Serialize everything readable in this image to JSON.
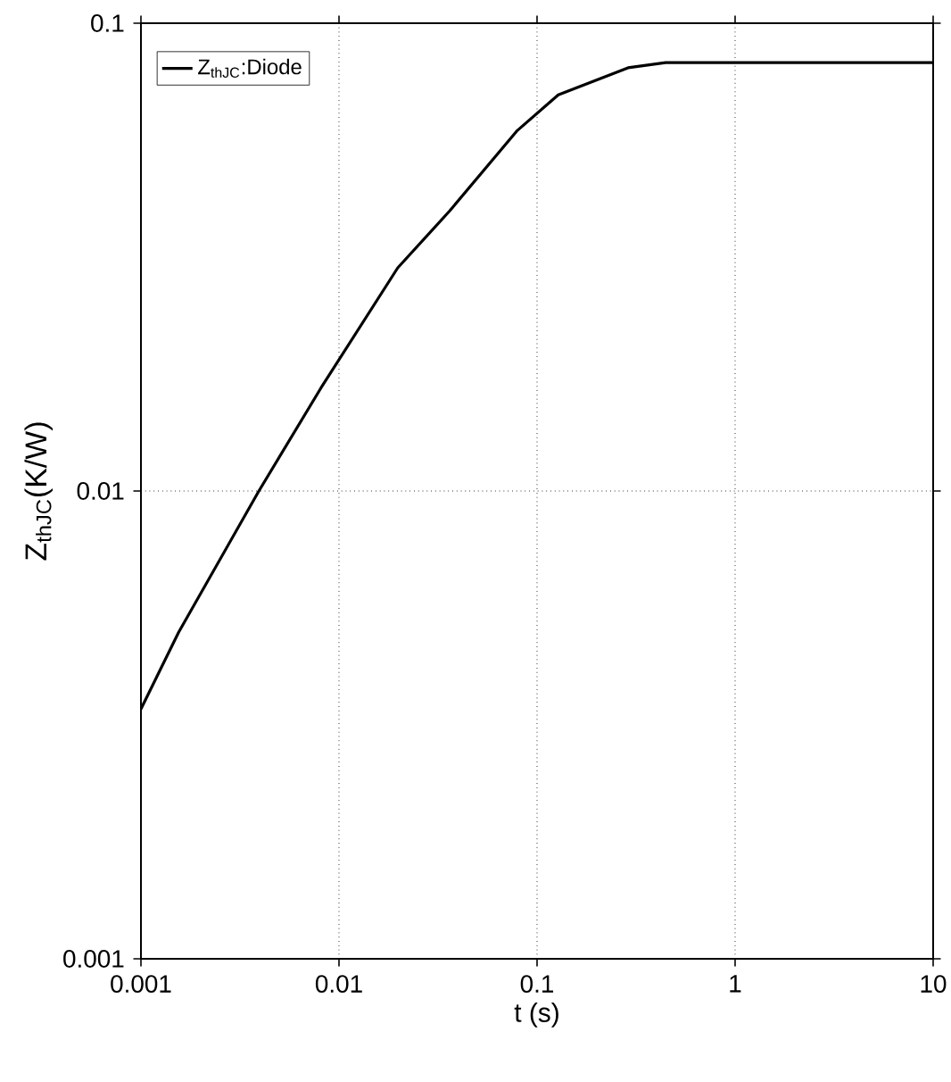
{
  "chart_data": {
    "type": "line",
    "xlabel": "t (s)",
    "ylabel": "Z$_{thJC}$(K/W)",
    "log": "xy",
    "grid": true,
    "legend": "top left",
    "marker": "none",
    "line_style": "solid",
    "xlim": [
      0.001,
      10
    ],
    "ylim": [
      0.001,
      0.1
    ],
    "xticks": [
      0.001,
      0.01,
      0.1,
      1,
      10
    ],
    "yticks": [
      0.001,
      0.01,
      0.1
    ],
    "x": [
      0.001,
      0.00155,
      0.00394,
      0.0081,
      0.0198,
      0.0362,
      0.0796,
      0.128,
      0.288,
      0.446,
      10
    ],
    "series": [
      {
        "name": "Z$_{thJC}$:Diode",
        "color": "#000000",
        "values": [
          0.00342,
          0.00499,
          0.01,
          0.0166,
          0.03,
          0.0397,
          0.059,
          0.0703,
          0.0803,
          0.0824,
          0.0824
        ]
      }
    ]
  }
}
